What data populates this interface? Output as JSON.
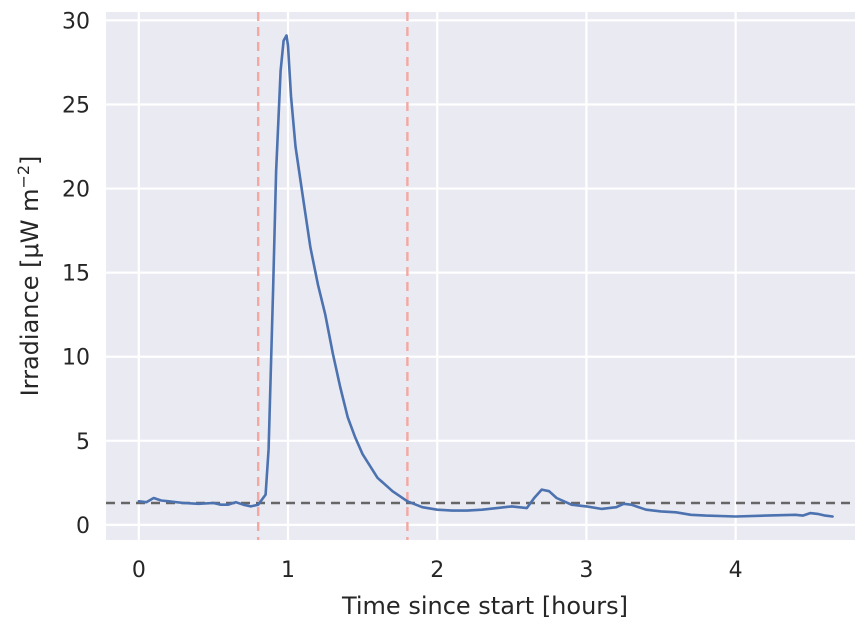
{
  "chart_data": {
    "type": "line",
    "title": "",
    "xlabel": "Time since start [hours]",
    "ylabel_main": "Irradiance [μW m",
    "ylabel_sup": "−2",
    "ylabel_close": "]",
    "xlim": [
      -0.22,
      4.8
    ],
    "ylim": [
      -0.9,
      30.5
    ],
    "xticks": [
      0,
      1,
      2,
      3,
      4
    ],
    "xtick_labels": [
      "0",
      "1",
      "2",
      "3",
      "4"
    ],
    "yticks": [
      0,
      5,
      10,
      15,
      20,
      25,
      30
    ],
    "ytick_labels": [
      "0",
      "5",
      "10",
      "15",
      "20",
      "25",
      "30"
    ],
    "grid": true,
    "background": "#eaeaf2",
    "series": [
      {
        "color": "#4c72b0",
        "x": [
          0.0,
          0.05,
          0.1,
          0.15,
          0.2,
          0.3,
          0.4,
          0.5,
          0.55,
          0.6,
          0.65,
          0.7,
          0.75,
          0.8,
          0.85,
          0.87,
          0.9,
          0.92,
          0.95,
          0.97,
          0.99,
          1.0,
          1.02,
          1.05,
          1.1,
          1.15,
          1.2,
          1.25,
          1.3,
          1.35,
          1.4,
          1.45,
          1.5,
          1.6,
          1.7,
          1.8,
          1.9,
          2.0,
          2.1,
          2.2,
          2.3,
          2.4,
          2.5,
          2.6,
          2.65,
          2.7,
          2.75,
          2.8,
          2.9,
          3.0,
          3.1,
          3.2,
          3.25,
          3.3,
          3.4,
          3.5,
          3.6,
          3.7,
          3.8,
          4.0,
          4.2,
          4.4,
          4.45,
          4.5,
          4.55,
          4.6,
          4.65
        ],
        "y": [
          1.4,
          1.35,
          1.6,
          1.45,
          1.4,
          1.3,
          1.25,
          1.3,
          1.2,
          1.2,
          1.35,
          1.2,
          1.1,
          1.2,
          1.8,
          4.5,
          14,
          21,
          27,
          28.8,
          29.1,
          28.5,
          25.5,
          22.5,
          19.5,
          16.5,
          14.3,
          12.5,
          10.2,
          8.2,
          6.4,
          5.2,
          4.2,
          2.8,
          2.0,
          1.4,
          1.05,
          0.9,
          0.85,
          0.85,
          0.9,
          1.0,
          1.1,
          1.0,
          1.6,
          2.1,
          2.0,
          1.6,
          1.2,
          1.1,
          0.95,
          1.05,
          1.25,
          1.2,
          0.9,
          0.8,
          0.75,
          0.6,
          0.55,
          0.5,
          0.55,
          0.6,
          0.55,
          0.7,
          0.65,
          0.55,
          0.5
        ]
      }
    ],
    "reference_lines": {
      "vertical": [
        {
          "x": 0.8,
          "color": "#f4a8a0"
        },
        {
          "x": 1.8,
          "color": "#f4a8a0"
        }
      ],
      "horizontal": [
        {
          "y": 1.3,
          "color": "#666666"
        }
      ]
    }
  }
}
